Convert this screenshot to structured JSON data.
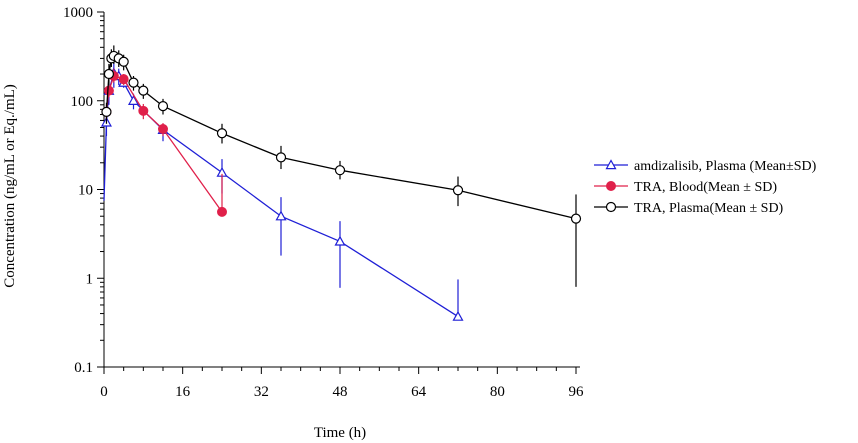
{
  "chart_data": {
    "type": "line",
    "xlabel": "Time (h)",
    "ylabel": "Concentration (ng/mL or Eq./mL)",
    "y_scale": "log",
    "xlim": [
      0,
      96
    ],
    "ylim": [
      0.1,
      1000
    ],
    "x_ticks": [
      {
        "value": 0,
        "label": "0"
      },
      {
        "value": 16,
        "label": "16"
      },
      {
        "value": 32,
        "label": "32"
      },
      {
        "value": 48,
        "label": "48"
      },
      {
        "value": 64,
        "label": "64"
      },
      {
        "value": 80,
        "label": "80"
      },
      {
        "value": 96,
        "label": "96"
      }
    ],
    "y_ticks": [
      {
        "value": 0.1,
        "label": "0.1"
      },
      {
        "value": 1,
        "label": "1"
      },
      {
        "value": 10,
        "label": "10"
      },
      {
        "value": 100,
        "label": "100"
      },
      {
        "value": 1000,
        "label": "1000"
      }
    ],
    "legend_position": "right",
    "series": [
      {
        "name": "amdizalisib, Plasma (Mean±SD)",
        "color": "#1f1fd6",
        "marker": "open-triangle",
        "points": [
          {
            "x": 0,
            "y": 7.5,
            "sd_low": 7.5,
            "sd_high": 7.5
          },
          {
            "x": 0.5,
            "y": 57,
            "sd_low": 40,
            "sd_high": 75
          },
          {
            "x": 1,
            "y": 130,
            "sd_low": 90,
            "sd_high": 170
          },
          {
            "x": 2,
            "y": 205,
            "sd_low": 140,
            "sd_high": 270
          },
          {
            "x": 3,
            "y": 190,
            "sd_low": 150,
            "sd_high": 230
          },
          {
            "x": 4,
            "y": 160,
            "sd_low": 140,
            "sd_high": 190
          },
          {
            "x": 6,
            "y": 100,
            "sd_low": 80,
            "sd_high": 120
          },
          {
            "x": 12,
            "y": 47,
            "sd_low": 35,
            "sd_high": 55
          },
          {
            "x": 24,
            "y": 15.5,
            "sd_low": 9,
            "sd_high": 22
          },
          {
            "x": 36,
            "y": 5,
            "sd_low": 1.8,
            "sd_high": 8.2
          },
          {
            "x": 48,
            "y": 2.6,
            "sd_low": 0.78,
            "sd_high": 4.4
          },
          {
            "x": 72,
            "y": 0.37,
            "sd_low": 0.37,
            "sd_high": 0.97
          }
        ]
      },
      {
        "name": "TRA, Blood(Mean ± SD)",
        "color": "#e0204a",
        "marker": "filled-circle",
        "points": [
          {
            "x": 0.5,
            "y": 75,
            "sd_low": 60,
            "sd_high": 90
          },
          {
            "x": 1,
            "y": 130,
            "sd_low": 110,
            "sd_high": 150
          },
          {
            "x": 2,
            "y": 190,
            "sd_low": 160,
            "sd_high": 230
          },
          {
            "x": 4,
            "y": 175,
            "sd_low": 150,
            "sd_high": 200
          },
          {
            "x": 8,
            "y": 77,
            "sd_low": 62,
            "sd_high": 92
          },
          {
            "x": 12,
            "y": 48,
            "sd_low": 40,
            "sd_high": 56
          },
          {
            "x": 24,
            "y": 5.6,
            "sd_low": 5.6,
            "sd_high": 15
          }
        ]
      },
      {
        "name": "TRA, Plasma(Mean ± SD)",
        "color": "#000000",
        "marker": "open-circle",
        "points": [
          {
            "x": 0.5,
            "y": 75,
            "sd_low": 55,
            "sd_high": 95
          },
          {
            "x": 1,
            "y": 200,
            "sd_low": 150,
            "sd_high": 260
          },
          {
            "x": 1.5,
            "y": 300,
            "sd_low": 240,
            "sd_high": 380
          },
          {
            "x": 2,
            "y": 320,
            "sd_low": 260,
            "sd_high": 420
          },
          {
            "x": 3,
            "y": 300,
            "sd_low": 240,
            "sd_high": 370
          },
          {
            "x": 4,
            "y": 275,
            "sd_low": 220,
            "sd_high": 330
          },
          {
            "x": 6,
            "y": 160,
            "sd_low": 130,
            "sd_high": 190
          },
          {
            "x": 8,
            "y": 130,
            "sd_low": 105,
            "sd_high": 155
          },
          {
            "x": 12,
            "y": 87,
            "sd_low": 70,
            "sd_high": 105
          },
          {
            "x": 24,
            "y": 43,
            "sd_low": 33,
            "sd_high": 55
          },
          {
            "x": 36,
            "y": 23,
            "sd_low": 17,
            "sd_high": 31
          },
          {
            "x": 48,
            "y": 16.5,
            "sd_low": 13,
            "sd_high": 21
          },
          {
            "x": 72,
            "y": 9.8,
            "sd_low": 6.5,
            "sd_high": 14
          },
          {
            "x": 96,
            "y": 4.7,
            "sd_low": 0.8,
            "sd_high": 8.8
          }
        ]
      }
    ]
  }
}
